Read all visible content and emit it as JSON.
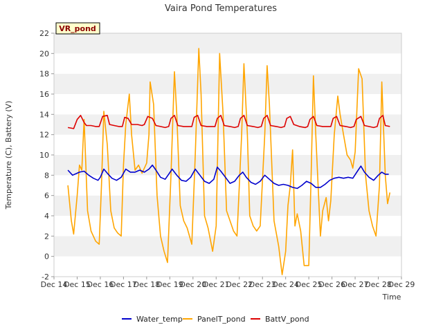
{
  "chart_data": {
    "type": "line",
    "title": "Vaira Pond Temperatures",
    "station_tag": "VR_pond",
    "xlabel": "Time",
    "ylabel": "Temperature (C), Battery (V)",
    "xlim": [
      14,
      29
    ],
    "ylim": [
      -2,
      22
    ],
    "x_ticks": [
      {
        "v": 14,
        "label": "Dec 14"
      },
      {
        "v": 15,
        "label": "Dec 15"
      },
      {
        "v": 16,
        "label": "Dec 16"
      },
      {
        "v": 17,
        "label": "Dec 17"
      },
      {
        "v": 18,
        "label": "Dec 18"
      },
      {
        "v": 19,
        "label": "Dec 19"
      },
      {
        "v": 20,
        "label": "Dec 20"
      },
      {
        "v": 21,
        "label": "Dec 21"
      },
      {
        "v": 22,
        "label": "Dec 22"
      },
      {
        "v": 23,
        "label": "Dec 23"
      },
      {
        "v": 24,
        "label": "Dec 24"
      },
      {
        "v": 25,
        "label": "Dec 25"
      },
      {
        "v": 26,
        "label": "Dec 26"
      },
      {
        "v": 27,
        "label": "Dec 27"
      },
      {
        "v": 28,
        "label": "Dec 28"
      },
      {
        "v": 29,
        "label": "Dec 29"
      }
    ],
    "y_ticks": [
      -2,
      0,
      2,
      4,
      6,
      8,
      10,
      12,
      14,
      16,
      18,
      20,
      22
    ],
    "grid": "horizontal bands",
    "legend": "bottom-center",
    "series": [
      {
        "name": "Water_temp",
        "color": "#0000cc",
        "points": [
          [
            14.6,
            8.5
          ],
          [
            14.8,
            8.0
          ],
          [
            15.0,
            8.2
          ],
          [
            15.1,
            8.3
          ],
          [
            15.3,
            8.4
          ],
          [
            15.5,
            8.0
          ],
          [
            15.7,
            7.7
          ],
          [
            15.9,
            7.5
          ],
          [
            16.0,
            7.8
          ],
          [
            16.15,
            8.6
          ],
          [
            16.3,
            8.2
          ],
          [
            16.5,
            7.7
          ],
          [
            16.7,
            7.5
          ],
          [
            16.9,
            7.8
          ],
          [
            17.1,
            8.6
          ],
          [
            17.3,
            8.3
          ],
          [
            17.5,
            8.3
          ],
          [
            17.7,
            8.5
          ],
          [
            17.9,
            8.3
          ],
          [
            18.1,
            8.6
          ],
          [
            18.25,
            9.0
          ],
          [
            18.4,
            8.5
          ],
          [
            18.6,
            7.8
          ],
          [
            18.8,
            7.6
          ],
          [
            18.95,
            8.1
          ],
          [
            19.1,
            8.6
          ],
          [
            19.3,
            8.0
          ],
          [
            19.5,
            7.5
          ],
          [
            19.7,
            7.4
          ],
          [
            19.9,
            7.8
          ],
          [
            20.1,
            8.6
          ],
          [
            20.3,
            8.0
          ],
          [
            20.5,
            7.4
          ],
          [
            20.7,
            7.2
          ],
          [
            20.9,
            7.6
          ],
          [
            21.05,
            8.8
          ],
          [
            21.2,
            8.4
          ],
          [
            21.4,
            7.8
          ],
          [
            21.6,
            7.2
          ],
          [
            21.8,
            7.4
          ],
          [
            22.0,
            8.0
          ],
          [
            22.15,
            8.3
          ],
          [
            22.3,
            7.8
          ],
          [
            22.5,
            7.3
          ],
          [
            22.7,
            7.1
          ],
          [
            22.9,
            7.4
          ],
          [
            23.1,
            8.0
          ],
          [
            23.3,
            7.6
          ],
          [
            23.5,
            7.2
          ],
          [
            23.7,
            7.0
          ],
          [
            23.9,
            7.1
          ],
          [
            24.1,
            7.0
          ],
          [
            24.3,
            6.8
          ],
          [
            24.5,
            6.7
          ],
          [
            24.7,
            7.0
          ],
          [
            24.9,
            7.4
          ],
          [
            25.1,
            7.2
          ],
          [
            25.3,
            6.8
          ],
          [
            25.5,
            6.8
          ],
          [
            25.7,
            7.1
          ],
          [
            25.9,
            7.5
          ],
          [
            26.1,
            7.7
          ],
          [
            26.3,
            7.8
          ],
          [
            26.5,
            7.7
          ],
          [
            26.7,
            7.8
          ],
          [
            26.9,
            7.7
          ],
          [
            27.1,
            8.4
          ],
          [
            27.25,
            8.9
          ],
          [
            27.4,
            8.3
          ],
          [
            27.6,
            7.8
          ],
          [
            27.8,
            7.5
          ],
          [
            28.0,
            8.0
          ],
          [
            28.15,
            8.3
          ],
          [
            28.3,
            8.1
          ],
          [
            28.45,
            8.1
          ]
        ]
      },
      {
        "name": "PanelT_pond",
        "color": "#ffa500",
        "points": [
          [
            14.6,
            7.0
          ],
          [
            14.75,
            3.5
          ],
          [
            14.85,
            2.2
          ],
          [
            15.0,
            6.0
          ],
          [
            15.1,
            9.0
          ],
          [
            15.2,
            8.5
          ],
          [
            15.3,
            13.5
          ],
          [
            15.45,
            4.5
          ],
          [
            15.6,
            2.5
          ],
          [
            15.8,
            1.5
          ],
          [
            15.95,
            1.2
          ],
          [
            16.05,
            7.0
          ],
          [
            16.15,
            14.3
          ],
          [
            16.3,
            11.0
          ],
          [
            16.45,
            4.5
          ],
          [
            16.6,
            2.8
          ],
          [
            16.75,
            2.3
          ],
          [
            16.9,
            2.0
          ],
          [
            17.0,
            9.0
          ],
          [
            17.1,
            13.0
          ],
          [
            17.25,
            16.0
          ],
          [
            17.35,
            12.0
          ],
          [
            17.5,
            8.5
          ],
          [
            17.65,
            9.0
          ],
          [
            17.8,
            8.2
          ],
          [
            18.0,
            9.2
          ],
          [
            18.1,
            12.0
          ],
          [
            18.15,
            17.2
          ],
          [
            18.3,
            15.0
          ],
          [
            18.45,
            6.0
          ],
          [
            18.6,
            2.0
          ],
          [
            18.75,
            0.5
          ],
          [
            18.9,
            -0.6
          ],
          [
            19.05,
            8.0
          ],
          [
            19.2,
            18.2
          ],
          [
            19.3,
            14.0
          ],
          [
            19.45,
            5.0
          ],
          [
            19.6,
            3.5
          ],
          [
            19.75,
            2.8
          ],
          [
            19.95,
            1.2
          ],
          [
            20.1,
            10.0
          ],
          [
            20.25,
            20.5
          ],
          [
            20.35,
            16.0
          ],
          [
            20.5,
            4.0
          ],
          [
            20.65,
            2.8
          ],
          [
            20.85,
            0.5
          ],
          [
            21.0,
            3.0
          ],
          [
            21.15,
            20.0
          ],
          [
            21.3,
            14.0
          ],
          [
            21.45,
            4.5
          ],
          [
            21.6,
            3.5
          ],
          [
            21.75,
            2.5
          ],
          [
            21.9,
            2.0
          ],
          [
            22.1,
            12.0
          ],
          [
            22.2,
            19.0
          ],
          [
            22.35,
            12.0
          ],
          [
            22.45,
            4.0
          ],
          [
            22.6,
            3.0
          ],
          [
            22.75,
            2.5
          ],
          [
            22.9,
            3.0
          ],
          [
            23.1,
            12.0
          ],
          [
            23.2,
            18.8
          ],
          [
            23.3,
            15.0
          ],
          [
            23.5,
            3.5
          ],
          [
            23.7,
            1.0
          ],
          [
            23.85,
            -1.8
          ],
          [
            24.0,
            0.5
          ],
          [
            24.1,
            5.0
          ],
          [
            24.2,
            7.0
          ],
          [
            24.3,
            10.5
          ],
          [
            24.4,
            3.0
          ],
          [
            24.5,
            4.2
          ],
          [
            24.65,
            2.5
          ],
          [
            24.8,
            -0.9
          ],
          [
            25.0,
            -0.9
          ],
          [
            25.1,
            8.0
          ],
          [
            25.2,
            17.8
          ],
          [
            25.3,
            12.0
          ],
          [
            25.5,
            2.0
          ],
          [
            25.6,
            4.5
          ],
          [
            25.75,
            5.8
          ],
          [
            25.85,
            3.5
          ],
          [
            25.95,
            5.5
          ],
          [
            26.1,
            12.0
          ],
          [
            26.25,
            15.8
          ],
          [
            26.35,
            14.0
          ],
          [
            26.5,
            12.0
          ],
          [
            26.65,
            10.0
          ],
          [
            26.8,
            9.5
          ],
          [
            26.9,
            8.7
          ],
          [
            27.0,
            10.3
          ],
          [
            27.15,
            18.5
          ],
          [
            27.3,
            17.5
          ],
          [
            27.45,
            8.0
          ],
          [
            27.6,
            4.5
          ],
          [
            27.75,
            3.0
          ],
          [
            27.9,
            2.0
          ],
          [
            28.05,
            7.0
          ],
          [
            28.15,
            17.2
          ],
          [
            28.3,
            8.0
          ],
          [
            28.4,
            5.2
          ],
          [
            28.5,
            6.3
          ]
        ]
      },
      {
        "name": "BattV_pond",
        "color": "#dd0000",
        "points": [
          [
            14.6,
            12.7
          ],
          [
            14.85,
            12.6
          ],
          [
            15.0,
            13.5
          ],
          [
            15.15,
            13.9
          ],
          [
            15.3,
            13.2
          ],
          [
            15.4,
            12.9
          ],
          [
            15.6,
            12.9
          ],
          [
            15.8,
            12.8
          ],
          [
            15.95,
            12.8
          ],
          [
            16.1,
            13.8
          ],
          [
            16.3,
            13.9
          ],
          [
            16.4,
            13.0
          ],
          [
            16.6,
            12.9
          ],
          [
            16.8,
            12.8
          ],
          [
            16.95,
            12.8
          ],
          [
            17.05,
            13.7
          ],
          [
            17.2,
            13.6
          ],
          [
            17.35,
            13.0
          ],
          [
            17.6,
            13.0
          ],
          [
            17.8,
            12.9
          ],
          [
            17.9,
            13.0
          ],
          [
            18.05,
            13.8
          ],
          [
            18.25,
            13.6
          ],
          [
            18.4,
            12.9
          ],
          [
            18.6,
            12.8
          ],
          [
            18.8,
            12.7
          ],
          [
            18.95,
            12.8
          ],
          [
            19.05,
            13.6
          ],
          [
            19.2,
            13.9
          ],
          [
            19.35,
            12.9
          ],
          [
            19.6,
            12.8
          ],
          [
            19.8,
            12.8
          ],
          [
            19.95,
            12.8
          ],
          [
            20.05,
            13.7
          ],
          [
            20.2,
            13.9
          ],
          [
            20.35,
            12.9
          ],
          [
            20.6,
            12.8
          ],
          [
            20.8,
            12.8
          ],
          [
            20.95,
            12.8
          ],
          [
            21.05,
            13.6
          ],
          [
            21.2,
            13.9
          ],
          [
            21.35,
            12.9
          ],
          [
            21.6,
            12.8
          ],
          [
            21.8,
            12.7
          ],
          [
            21.95,
            12.8
          ],
          [
            22.05,
            13.6
          ],
          [
            22.2,
            13.9
          ],
          [
            22.35,
            12.9
          ],
          [
            22.6,
            12.8
          ],
          [
            22.8,
            12.7
          ],
          [
            22.95,
            12.8
          ],
          [
            23.05,
            13.6
          ],
          [
            23.2,
            13.9
          ],
          [
            23.35,
            12.9
          ],
          [
            23.6,
            12.8
          ],
          [
            23.8,
            12.7
          ],
          [
            23.95,
            12.8
          ],
          [
            24.05,
            13.6
          ],
          [
            24.2,
            13.8
          ],
          [
            24.35,
            13.0
          ],
          [
            24.6,
            12.8
          ],
          [
            24.85,
            12.7
          ],
          [
            24.95,
            12.8
          ],
          [
            25.05,
            13.5
          ],
          [
            25.2,
            13.8
          ],
          [
            25.35,
            12.9
          ],
          [
            25.6,
            12.8
          ],
          [
            25.8,
            12.8
          ],
          [
            25.95,
            12.8
          ],
          [
            26.05,
            13.6
          ],
          [
            26.2,
            13.8
          ],
          [
            26.35,
            12.9
          ],
          [
            26.6,
            12.8
          ],
          [
            26.8,
            12.7
          ],
          [
            26.95,
            12.8
          ],
          [
            27.05,
            13.5
          ],
          [
            27.25,
            13.8
          ],
          [
            27.4,
            12.9
          ],
          [
            27.6,
            12.8
          ],
          [
            27.8,
            12.7
          ],
          [
            27.95,
            12.8
          ],
          [
            28.05,
            13.6
          ],
          [
            28.2,
            13.9
          ],
          [
            28.3,
            12.9
          ],
          [
            28.5,
            12.8
          ]
        ]
      }
    ]
  }
}
